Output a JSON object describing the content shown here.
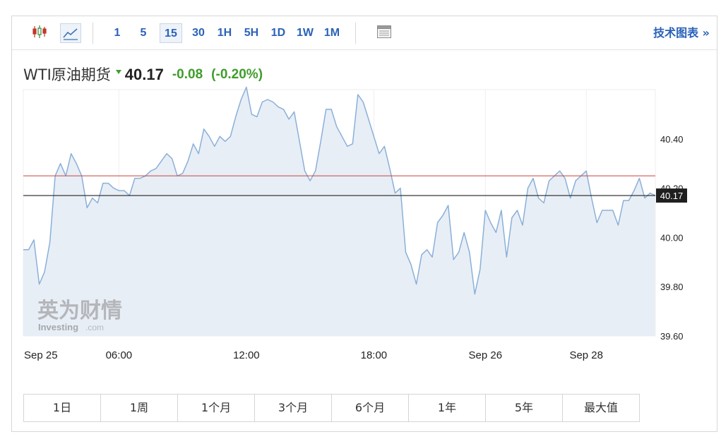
{
  "toolbar": {
    "intervals": [
      "1",
      "5",
      "15",
      "30",
      "1H",
      "5H",
      "1D",
      "1W",
      "1M"
    ],
    "selected_interval": "15",
    "tech_chart_link": "技术图表 »"
  },
  "quote": {
    "name": "WTI原油期货",
    "price": "40.17",
    "change": "-0.08",
    "change_pct": "(-0.20%)",
    "direction": "down"
  },
  "colors": {
    "line": "#8ab0d8",
    "area": "#e8eef6",
    "prev_close_line": "#c8453a",
    "current_line": "#222222",
    "positive_down": "#3f9d2c",
    "link": "#2a62b8"
  },
  "watermark": {
    "cn": "英为财情",
    "en": "Investing",
    "suffix": ".com"
  },
  "chart_data": {
    "type": "area",
    "title": "",
    "xlabel": "",
    "ylabel": "",
    "ylim": [
      39.6,
      40.68
    ],
    "y_ticks": [
      "40.40",
      "40.20",
      "40.00",
      "39.80",
      "39.60"
    ],
    "x_tick_labels": [
      {
        "label": "Sep 25",
        "t": 0
      },
      {
        "label": "06:00",
        "t": 18
      },
      {
        "label": "12:00",
        "t": 42
      },
      {
        "label": "18:00",
        "t": 66
      },
      {
        "label": "Sep 26",
        "t": 87
      },
      {
        "label": "Sep 28",
        "t": 106
      }
    ],
    "prev_close": 40.25,
    "current_price": 40.17,
    "current_price_label": "40.17",
    "series": [
      {
        "values": [
          39.95,
          39.95,
          39.99,
          39.81,
          39.86,
          39.98,
          40.25,
          40.3,
          40.25,
          40.34,
          40.3,
          40.25,
          40.12,
          40.16,
          40.14,
          40.22,
          40.22,
          40.2,
          40.19,
          40.19,
          40.17,
          40.24,
          40.24,
          40.25,
          40.27,
          40.28,
          40.31,
          40.34,
          40.32,
          40.25,
          40.26,
          40.31,
          40.38,
          40.34,
          40.44,
          40.41,
          40.37,
          40.41,
          40.39,
          40.41,
          40.49,
          40.56,
          40.61,
          40.5,
          40.49,
          40.55,
          40.56,
          40.55,
          40.53,
          40.52,
          40.48,
          40.51,
          40.39,
          40.27,
          40.23,
          40.27,
          40.39,
          40.52,
          40.52,
          40.45,
          40.41,
          40.37,
          40.38,
          40.58,
          40.55,
          40.48,
          40.41,
          40.34,
          40.37,
          40.28,
          40.18,
          40.2,
          39.94,
          39.89,
          39.81,
          39.93,
          39.95,
          39.92,
          40.06,
          40.09,
          40.13,
          39.91,
          39.94,
          40.02,
          39.94,
          39.77,
          39.87,
          40.11,
          40.06,
          40.02,
          40.11,
          39.92,
          40.08,
          40.11,
          40.05,
          40.2,
          40.24,
          40.16,
          40.14,
          40.23,
          40.25,
          40.27,
          40.24,
          40.16,
          40.23,
          40.25,
          40.27,
          40.16,
          40.06,
          40.11,
          40.11,
          40.11,
          40.05,
          40.15,
          40.15,
          40.19,
          40.24,
          40.16,
          40.18,
          40.17
        ]
      }
    ]
  },
  "periods": [
    "1日",
    "1周",
    "1个月",
    "3个月",
    "6个月",
    "1年",
    "5年",
    "最大值"
  ]
}
